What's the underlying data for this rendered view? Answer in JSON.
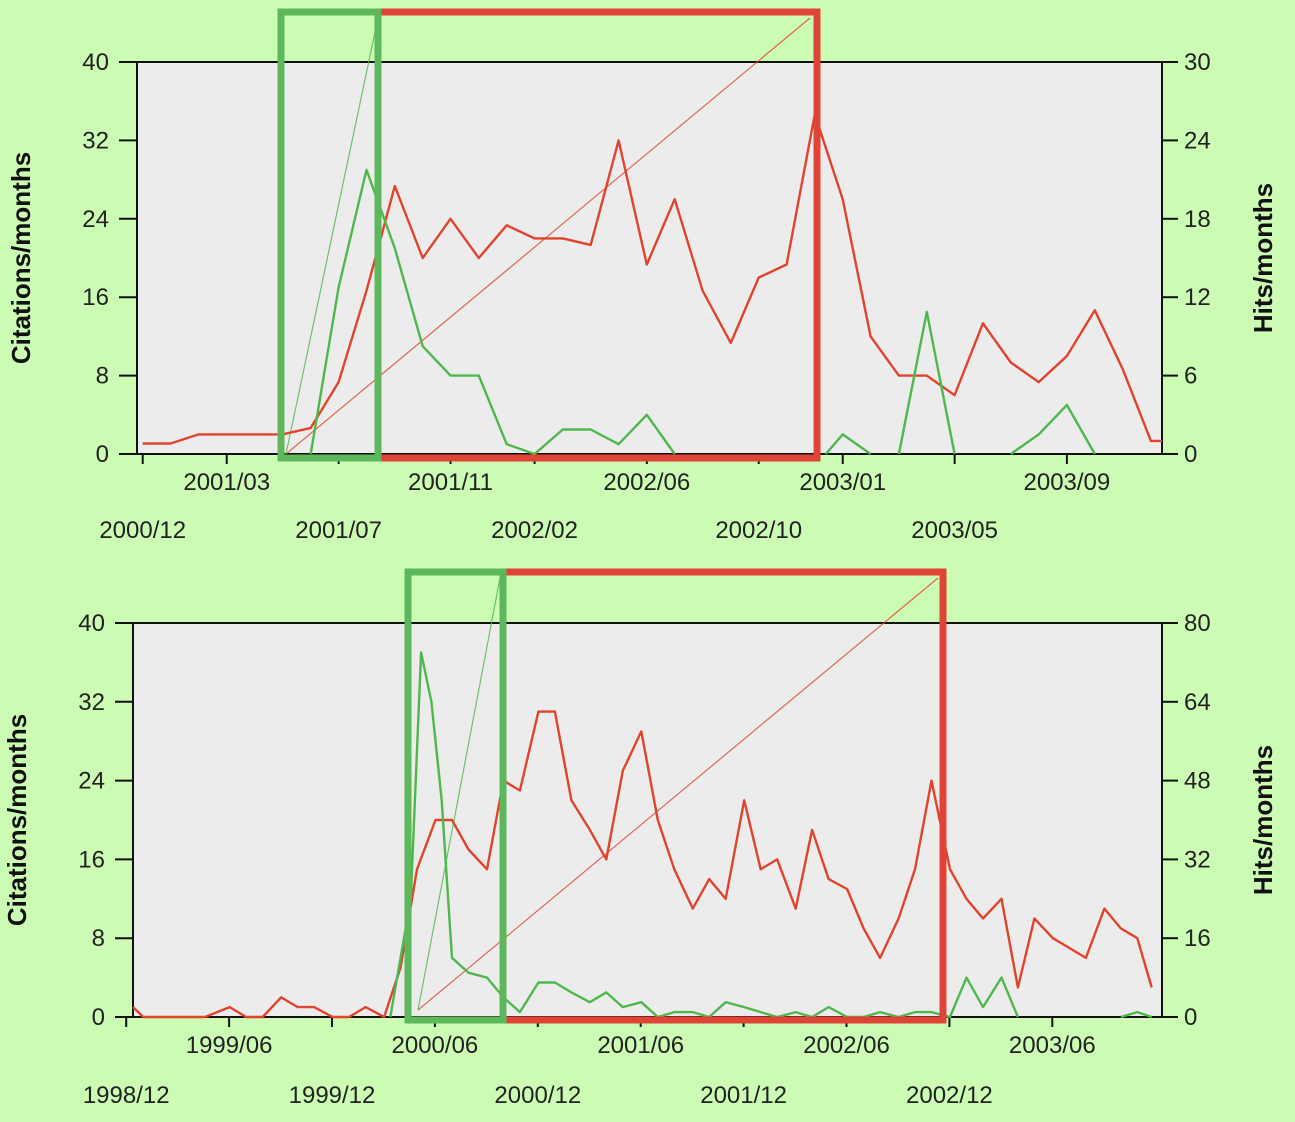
{
  "colors": {
    "background": "#ccfbb4",
    "plot_bg": "#ececec",
    "citations_line": "#e0442c",
    "hits_line": "#4fb84c",
    "red_box": "#e04436",
    "green_box": "#5cb85a"
  },
  "chart_data": [
    {
      "type": "line",
      "ylabel": "Citations/months",
      "y2label": "Hits/months",
      "ylim": [
        0,
        40
      ],
      "y2lim": [
        0,
        30
      ],
      "yticks": [
        "0",
        "8",
        "16",
        "24",
        "32",
        "40"
      ],
      "y2ticks": [
        "0",
        "6",
        "12",
        "18",
        "24",
        "30"
      ],
      "xlim": [
        2000.9,
        2003.95
      ],
      "xtick_rows": {
        "upper": [
          {
            "x": 2001.167,
            "label": "2001/03"
          },
          {
            "x": 2001.833,
            "label": "2001/11"
          },
          {
            "x": 2002.417,
            "label": "2002/06"
          },
          {
            "x": 2003.0,
            "label": "2003/01"
          },
          {
            "x": 2003.667,
            "label": "2003/09"
          }
        ],
        "lower": [
          {
            "x": 2000.917,
            "label": "2000/12"
          },
          {
            "x": 2001.5,
            "label": "2001/07"
          },
          {
            "x": 2002.083,
            "label": "2002/02"
          },
          {
            "x": 2002.75,
            "label": "2002/10"
          },
          {
            "x": 2003.333,
            "label": "2003/05"
          }
        ]
      },
      "series": [
        {
          "axis": "right",
          "color": "#e0442c",
          "points": [
            [
              2000.917,
              0.8
            ],
            [
              2001.0,
              0.8
            ],
            [
              2001.083,
              1.5
            ],
            [
              2001.167,
              1.5
            ],
            [
              2001.25,
              1.5
            ],
            [
              2001.333,
              1.5
            ],
            [
              2001.417,
              2.0
            ],
            [
              2001.5,
              5.5
            ],
            [
              2001.583,
              12.5
            ],
            [
              2001.667,
              20.5
            ],
            [
              2001.75,
              15.0
            ],
            [
              2001.833,
              18.0
            ],
            [
              2001.917,
              15.0
            ],
            [
              2002.0,
              17.5
            ],
            [
              2002.083,
              16.5
            ],
            [
              2002.167,
              16.5
            ],
            [
              2002.25,
              16.0
            ],
            [
              2002.333,
              24.0
            ],
            [
              2002.417,
              14.5
            ],
            [
              2002.5,
              19.5
            ],
            [
              2002.583,
              12.5
            ],
            [
              2002.667,
              8.5
            ],
            [
              2002.75,
              13.5
            ],
            [
              2002.833,
              14.5
            ],
            [
              2002.917,
              26.0
            ],
            [
              2003.0,
              19.5
            ],
            [
              2003.083,
              9.0
            ],
            [
              2003.167,
              6.0
            ],
            [
              2003.25,
              6.0
            ],
            [
              2003.333,
              4.5
            ],
            [
              2003.417,
              10.0
            ],
            [
              2003.5,
              7.0
            ],
            [
              2003.583,
              5.5
            ],
            [
              2003.667,
              7.5
            ],
            [
              2003.75,
              11.0
            ],
            [
              2003.833,
              6.5
            ],
            [
              2003.917,
              1.0
            ],
            [
              2003.95,
              1.0
            ]
          ]
        },
        {
          "axis": "left",
          "color": "#4fb84c",
          "points": [
            [
              2001.417,
              0
            ],
            [
              2001.5,
              17.0
            ],
            [
              2001.583,
              29.0
            ],
            [
              2001.667,
              21.0
            ],
            [
              2001.75,
              11.0
            ],
            [
              2001.833,
              8.0
            ],
            [
              2001.917,
              8.0
            ],
            [
              2002.0,
              1.0
            ],
            [
              2002.083,
              0
            ],
            [
              2002.167,
              2.5
            ],
            [
              2002.25,
              2.5
            ],
            [
              2002.333,
              1.0
            ],
            [
              2002.417,
              4.0
            ],
            [
              2002.5,
              0
            ]
          ]
        },
        {
          "axis": "left",
          "color": "#4fb84c",
          "points": [
            [
              2002.95,
              0
            ],
            [
              2003.0,
              2.0
            ],
            [
              2003.083,
              0
            ]
          ]
        },
        {
          "axis": "left",
          "color": "#4fb84c",
          "points": [
            [
              2003.167,
              0
            ],
            [
              2003.25,
              14.5
            ],
            [
              2003.333,
              0
            ]
          ]
        },
        {
          "axis": "left",
          "color": "#4fb84c",
          "points": [
            [
              2003.5,
              0
            ],
            [
              2003.583,
              2.0
            ],
            [
              2003.667,
              5.0
            ],
            [
              2003.75,
              0
            ]
          ]
        }
      ]
    },
    {
      "type": "line",
      "ylabel": "Citations/months",
      "y2label": "Hits/months",
      "ylim": [
        0,
        40
      ],
      "y2lim": [
        0,
        80
      ],
      "yticks": [
        "0",
        "8",
        "16",
        "24",
        "32",
        "40"
      ],
      "y2ticks": [
        "0",
        "16",
        "32",
        "48",
        "64",
        "80"
      ],
      "xlim": [
        1998.95,
        2003.95
      ],
      "xtick_rows": {
        "upper": [
          {
            "x": 1999.417,
            "label": "1999/06"
          },
          {
            "x": 2000.417,
            "label": "2000/06"
          },
          {
            "x": 2001.417,
            "label": "2001/06"
          },
          {
            "x": 2002.417,
            "label": "2002/06"
          },
          {
            "x": 2003.417,
            "label": "2003/06"
          }
        ],
        "lower": [
          {
            "x": 1998.917,
            "label": "1998/12"
          },
          {
            "x": 1999.917,
            "label": "1999/12"
          },
          {
            "x": 2000.917,
            "label": "2000/12"
          },
          {
            "x": 2001.917,
            "label": "2001/12"
          },
          {
            "x": 2002.917,
            "label": "2002/12"
          }
        ]
      },
      "series": [
        {
          "axis": "right",
          "color": "#e0442c",
          "points": [
            [
              1998.95,
              2
            ],
            [
              1999.0,
              0
            ],
            [
              1999.3,
              0
            ],
            [
              1999.42,
              2
            ],
            [
              1999.5,
              0
            ],
            [
              1999.58,
              0
            ],
            [
              1999.67,
              4
            ],
            [
              1999.75,
              2
            ],
            [
              1999.83,
              2
            ],
            [
              1999.92,
              0
            ],
            [
              2000.0,
              0
            ],
            [
              2000.08,
              2
            ],
            [
              2000.17,
              0
            ],
            [
              2000.25,
              10
            ],
            [
              2000.33,
              30
            ],
            [
              2000.42,
              40
            ],
            [
              2000.5,
              40
            ],
            [
              2000.58,
              34
            ],
            [
              2000.67,
              30
            ],
            [
              2000.75,
              48
            ],
            [
              2000.83,
              46
            ],
            [
              2000.92,
              62
            ],
            [
              2001.0,
              62
            ],
            [
              2001.08,
              44
            ],
            [
              2001.17,
              38
            ],
            [
              2001.25,
              32
            ],
            [
              2001.33,
              50
            ],
            [
              2001.42,
              58
            ],
            [
              2001.5,
              40
            ],
            [
              2001.58,
              30
            ],
            [
              2001.67,
              22
            ],
            [
              2001.75,
              28
            ],
            [
              2001.83,
              24
            ],
            [
              2001.92,
              44
            ],
            [
              2002.0,
              30
            ],
            [
              2002.08,
              32
            ],
            [
              2002.17,
              22
            ],
            [
              2002.25,
              38
            ],
            [
              2002.33,
              28
            ],
            [
              2002.42,
              26
            ],
            [
              2002.5,
              18
            ],
            [
              2002.58,
              12
            ],
            [
              2002.67,
              20
            ],
            [
              2002.75,
              30
            ],
            [
              2002.83,
              48
            ],
            [
              2002.92,
              30
            ],
            [
              2003.0,
              24
            ],
            [
              2003.08,
              20
            ],
            [
              2003.17,
              24
            ],
            [
              2003.25,
              6
            ],
            [
              2003.33,
              20
            ],
            [
              2003.42,
              16
            ],
            [
              2003.5,
              14
            ],
            [
              2003.58,
              12
            ],
            [
              2003.67,
              22
            ],
            [
              2003.75,
              18
            ],
            [
              2003.83,
              16
            ],
            [
              2003.9,
              6
            ]
          ]
        },
        {
          "axis": "left",
          "color": "#4fb84c",
          "points": [
            [
              2000.2,
              0
            ],
            [
              2000.3,
              12
            ],
            [
              2000.35,
              37
            ],
            [
              2000.4,
              32
            ],
            [
              2000.45,
              22
            ],
            [
              2000.5,
              6
            ],
            [
              2000.58,
              4.5
            ],
            [
              2000.67,
              4
            ],
            [
              2000.75,
              2
            ],
            [
              2000.83,
              0.5
            ],
            [
              2000.92,
              3.5
            ],
            [
              2001.0,
              3.5
            ],
            [
              2001.08,
              2.5
            ],
            [
              2001.17,
              1.5
            ],
            [
              2001.25,
              2.5
            ],
            [
              2001.33,
              1
            ],
            [
              2001.42,
              1.5
            ],
            [
              2001.5,
              0
            ],
            [
              2001.58,
              0.5
            ],
            [
              2001.67,
              0.5
            ],
            [
              2001.75,
              0
            ],
            [
              2001.83,
              1.5
            ],
            [
              2001.92,
              1
            ],
            [
              2002.0,
              0.5
            ],
            [
              2002.08,
              0
            ],
            [
              2002.17,
              0.5
            ],
            [
              2002.25,
              0
            ],
            [
              2002.33,
              1
            ],
            [
              2002.42,
              0
            ],
            [
              2002.5,
              0
            ],
            [
              2002.58,
              0.5
            ],
            [
              2002.67,
              0
            ],
            [
              2002.75,
              0.5
            ],
            [
              2002.83,
              0.5
            ],
            [
              2002.92,
              0
            ],
            [
              2003.0,
              4
            ],
            [
              2003.08,
              1
            ],
            [
              2003.17,
              4
            ],
            [
              2003.25,
              0
            ]
          ]
        },
        {
          "axis": "left",
          "color": "#4fb84c",
          "points": [
            [
              2003.75,
              0
            ],
            [
              2003.83,
              0.5
            ],
            [
              2003.9,
              0
            ]
          ]
        }
      ]
    }
  ]
}
